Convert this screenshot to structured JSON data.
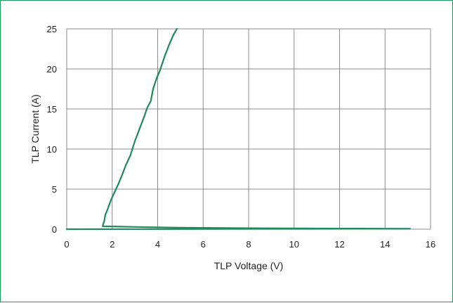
{
  "chart_data": {
    "type": "line",
    "xlabel": "TLP Voltage (V)",
    "ylabel": "TLP Current (A)",
    "xlim": [
      0,
      16
    ],
    "ylim": [
      0,
      25
    ],
    "x_ticks": [
      0,
      2,
      4,
      6,
      8,
      10,
      12,
      14,
      16
    ],
    "y_ticks": [
      0,
      5,
      10,
      15,
      20,
      25
    ],
    "grid": true,
    "legend": "none",
    "series": [
      {
        "color": "#1f8a5b",
        "points": [
          [
            0.0,
            0.0
          ],
          [
            5.0,
            0.02
          ],
          [
            10.0,
            0.04
          ],
          [
            14.0,
            0.05
          ],
          [
            15.1,
            0.06
          ],
          [
            12.0,
            0.08
          ],
          [
            8.0,
            0.12
          ],
          [
            5.0,
            0.18
          ],
          [
            3.0,
            0.28
          ],
          [
            2.0,
            0.34
          ],
          [
            1.58,
            0.36
          ],
          [
            1.6,
            0.6
          ],
          [
            1.65,
            1.0
          ],
          [
            1.7,
            1.8
          ],
          [
            1.8,
            2.5
          ],
          [
            1.9,
            3.3
          ],
          [
            2.0,
            4.0
          ],
          [
            2.1,
            4.6
          ],
          [
            2.25,
            5.5
          ],
          [
            2.4,
            6.5
          ],
          [
            2.6,
            8.0
          ],
          [
            2.8,
            9.2
          ],
          [
            3.0,
            11.0
          ],
          [
            3.2,
            12.5
          ],
          [
            3.4,
            14.0
          ],
          [
            3.55,
            15.2
          ],
          [
            3.7,
            16.0
          ],
          [
            3.8,
            17.5
          ],
          [
            3.95,
            18.8
          ],
          [
            4.1,
            19.8
          ],
          [
            4.3,
            21.5
          ],
          [
            4.5,
            23.0
          ],
          [
            4.7,
            24.3
          ],
          [
            4.85,
            25.0
          ]
        ]
      }
    ]
  }
}
